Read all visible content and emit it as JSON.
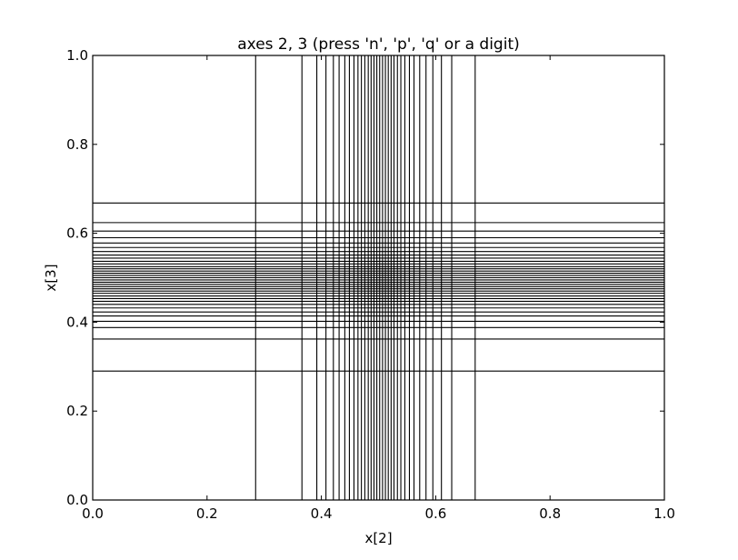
{
  "chart_data": {
    "type": "line",
    "title": "axes 2, 3   (press 'n', 'p', 'q' or a digit)",
    "xlabel": "x[2]",
    "ylabel": "x[3]",
    "xlim": [
      0.0,
      1.0
    ],
    "ylim": [
      0.0,
      1.0
    ],
    "grid": false,
    "xticks": [
      "0.0",
      "0.2",
      "0.4",
      "0.6",
      "0.8",
      "1.0"
    ],
    "yticks": [
      "0.0",
      "0.2",
      "0.4",
      "0.6",
      "0.8",
      "1.0"
    ],
    "vertical_lines_x": [
      0.285,
      0.366,
      0.392,
      0.408,
      0.421,
      0.431,
      0.441,
      0.449,
      0.457,
      0.464,
      0.47,
      0.476,
      0.482,
      0.487,
      0.492,
      0.497,
      0.502,
      0.507,
      0.512,
      0.517,
      0.522,
      0.527,
      0.533,
      0.539,
      0.546,
      0.554,
      0.562,
      0.572,
      0.583,
      0.595,
      0.61,
      0.628,
      0.669
    ],
    "horizontal_lines_y": [
      0.29,
      0.362,
      0.388,
      0.402,
      0.414,
      0.423,
      0.432,
      0.44,
      0.447,
      0.453,
      0.459,
      0.465,
      0.47,
      0.475,
      0.48,
      0.485,
      0.49,
      0.495,
      0.5,
      0.505,
      0.51,
      0.515,
      0.52,
      0.525,
      0.531,
      0.537,
      0.544,
      0.551,
      0.559,
      0.568,
      0.578,
      0.59,
      0.605,
      0.624,
      0.668
    ],
    "line_color": "#000000"
  }
}
